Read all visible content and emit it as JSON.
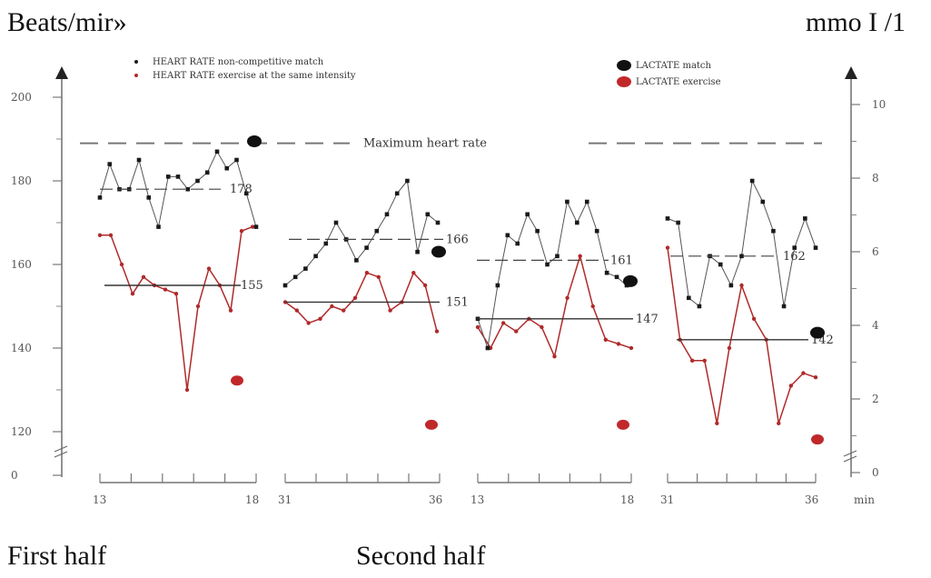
{
  "labels": {
    "left_unit": "Beats/mir»",
    "right_unit": "mmo I /1",
    "first_half": "First half",
    "second_half": "Second half",
    "max_hr": "Maximum heart rate",
    "x_unit": "min"
  },
  "colors": {
    "black_series": "#1a1a1a",
    "red_series": "#b02a2a",
    "lactate_match": "#111111",
    "lactate_exercise": "#c0282a"
  },
  "chart_data": {
    "type": "line",
    "legend": [
      {
        "name": "HEART RATE non-competitive match",
        "marker": "dot",
        "color": "#1a1a1a"
      },
      {
        "name": "HEART RATE exercise at the same intensity",
        "marker": "dot",
        "color": "#b02a2a"
      },
      {
        "name": "LACTATE match",
        "marker": "disc",
        "color": "#111111"
      },
      {
        "name": "LACTATE exercise",
        "marker": "disc",
        "color": "#c0282a"
      }
    ],
    "y_left": {
      "ticks": [
        0,
        120,
        140,
        160,
        180,
        200
      ],
      "ylim": [
        115,
        205
      ],
      "broken": true
    },
    "y_right": {
      "ticks": [
        0,
        2,
        4,
        6,
        8,
        10
      ],
      "tick_labels": [
        "0",
        "2",
        "4",
        "6",
        "8",
        "10"
      ],
      "broken": true
    },
    "max_heart_rate": 189,
    "panels": [
      {
        "x_start": "13",
        "x_end": "18",
        "match_hr": [
          176,
          184,
          178,
          178,
          185,
          176,
          169,
          181,
          181,
          178,
          180,
          182,
          187,
          183,
          185,
          177,
          169
        ],
        "exercise_hr": [
          167,
          167,
          160,
          153,
          157,
          155,
          154,
          153,
          130,
          150,
          159,
          155,
          149,
          168,
          169
        ],
        "match_mean": 178,
        "exercise_mean": 155,
        "lactate_match": 9.0,
        "lactate_exercise": 2.5
      },
      {
        "x_start": "31",
        "x_end": "36",
        "match_hr": [
          155,
          157,
          159,
          162,
          165,
          170,
          166,
          161,
          164,
          168,
          172,
          177,
          180,
          163,
          172,
          170
        ],
        "exercise_hr": [
          151,
          149,
          146,
          147,
          150,
          149,
          152,
          158,
          157,
          149,
          151,
          158,
          155,
          144
        ],
        "match_mean": 166,
        "exercise_mean": 151,
        "lactate_match": 6.0,
        "lactate_exercise": 1.3
      },
      {
        "x_start": "13",
        "x_end": "18",
        "match_hr": [
          147,
          140,
          155,
          167,
          165,
          172,
          168,
          160,
          162,
          175,
          170,
          175,
          168,
          158,
          157,
          155
        ],
        "exercise_hr": [
          145,
          140,
          146,
          144,
          147,
          145,
          138,
          152,
          162,
          150,
          142,
          141,
          140
        ],
        "match_mean": 161,
        "exercise_mean": 147,
        "lactate_match": 5.2,
        "lactate_exercise": 1.3
      },
      {
        "x_start": "31",
        "x_end": "36",
        "match_hr": [
          171,
          170,
          152,
          150,
          162,
          160,
          155,
          162,
          180,
          175,
          168,
          150,
          164,
          171,
          164
        ],
        "exercise_hr": [
          164,
          142,
          137,
          137,
          122,
          140,
          155,
          147,
          142,
          122,
          131,
          134,
          133
        ],
        "match_mean": 162,
        "exercise_mean": 142,
        "lactate_match": 3.8,
        "lactate_exercise": 0.9
      }
    ]
  }
}
